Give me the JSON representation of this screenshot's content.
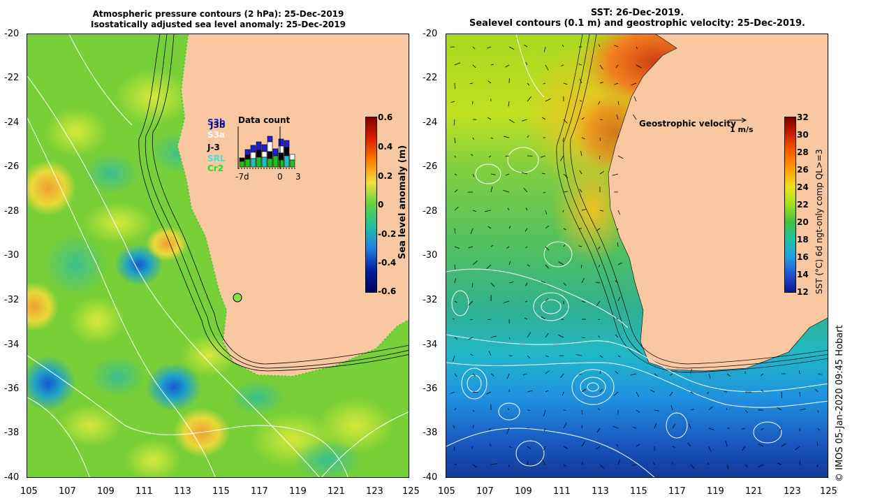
{
  "left_panel": {
    "title_line1": "Atmospheric pressure contours (2 hPa): 25-Dec-2019",
    "title_line2": "Isostatically adjusted sea level anomaly: 25-Dec-2019",
    "colorbar_label": "Sea level anomaly (m)",
    "colorbar_ticks": [
      "0.6",
      "0.4",
      "0.2",
      "0",
      "-0.2",
      "-0.4",
      "-0.6"
    ],
    "data_count": {
      "title": "Data count",
      "satellites": [
        "S3b",
        "J3b",
        "S3a",
        "J-3",
        "SRL",
        "Cr2"
      ],
      "satellite_colors": [
        "#2020d0",
        "#000080",
        "#ffffff",
        "#000000",
        "#20c0c0",
        "#20c020"
      ],
      "x_labels": [
        "-7d",
        "0",
        "3"
      ]
    }
  },
  "right_panel": {
    "title_line1": "SST: 26-Dec-2019.",
    "title_line2": "Sealevel contours (0.1 m) and geostrophic velocity: 25-Dec-2019.",
    "velocity_legend": "Geostrophic velocity",
    "velocity_scale": "1 m/s",
    "colorbar_label": "SST (°C) 6d ngt-only comp QL>=3",
    "colorbar_ticks": [
      "32",
      "30",
      "28",
      "26",
      "24",
      "22",
      "20",
      "18",
      "16",
      "14",
      "12"
    ]
  },
  "axes": {
    "y_ticks": [
      "-20",
      "-22",
      "-24",
      "-26",
      "-28",
      "-30",
      "-32",
      "-34",
      "-36",
      "-38",
      "-40"
    ],
    "x_ticks": [
      "105",
      "107",
      "109",
      "111",
      "113",
      "115",
      "117",
      "119",
      "121",
      "123",
      "125"
    ]
  },
  "credit": "© IMOS 05-Jan-2020 09:45 Hobart"
}
